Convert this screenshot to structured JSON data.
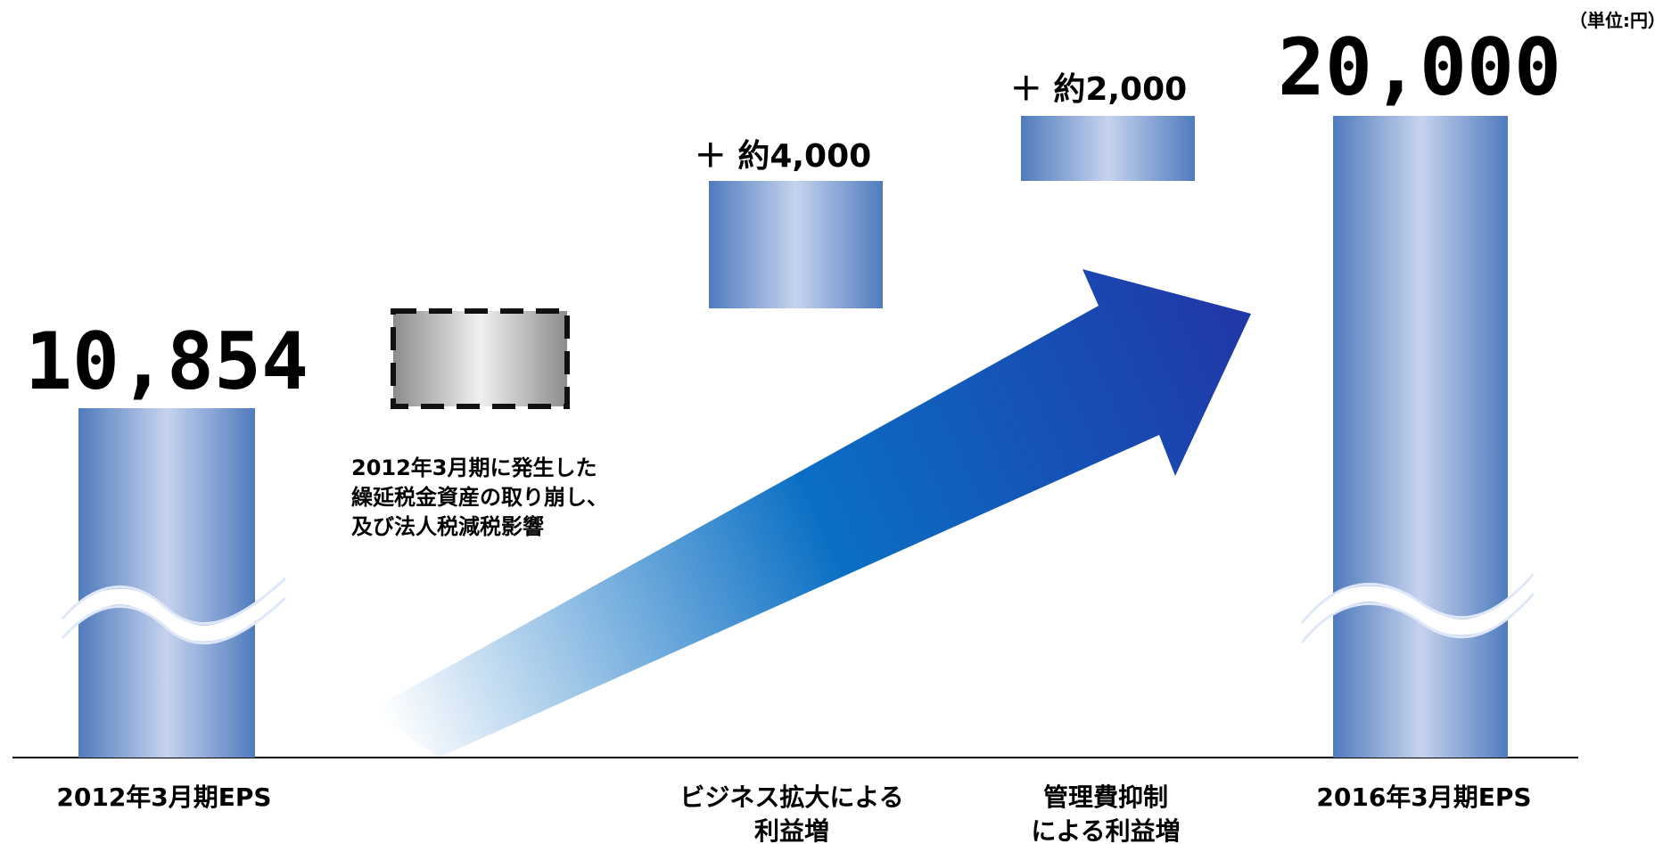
{
  "unit_note": "（単位:円）",
  "colors": {
    "bar_edge": "#4f7bbd",
    "bar_center": "#c6d3ee",
    "arrow_start": "#ffffff",
    "arrow_mid": "#0a6fc4",
    "arrow_end": "#2137a7",
    "gray_edge": "#8c8c8c",
    "gray_center": "#f0f0f0",
    "axis": "#000000"
  },
  "chart_data": {
    "type": "bar",
    "subtype": "waterfall",
    "categories": [
      "2012年3月期EPS",
      "",
      "ビジネス拡大による利益増",
      "管理費抑制による利益増",
      "2016年3月期EPS"
    ],
    "category_labels": [
      [
        "2012年3月期EPS"
      ],
      [],
      [
        "ビジネス拡大による",
        "利益増"
      ],
      [
        "管理費抑制",
        "による利益増"
      ],
      [
        "2016年3月期EPS"
      ]
    ],
    "start_value": 10854,
    "end_value": 20000,
    "bar_labels": [
      "10,854",
      "",
      "＋ 約4,000",
      "＋ 約2,000",
      "20,000"
    ],
    "tax_effect_note": [
      "2012年3月期に発生した",
      "繰延税金資産の取り崩し、",
      "及び法人税減税影響"
    ],
    "axis_break": true,
    "legend": "none",
    "grid": false
  }
}
